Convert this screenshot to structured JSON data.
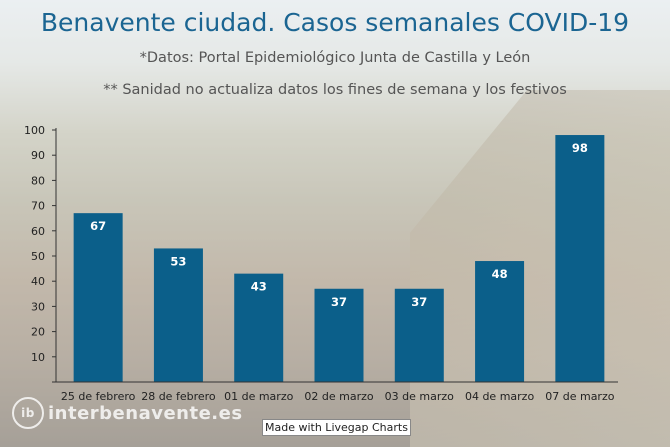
{
  "chart_data": {
    "type": "bar",
    "title": "Benavente ciudad. Casos semanales COVID-19",
    "subtitle": "*Datos: Portal Epidemiológico Junta de Castilla y León",
    "note": "** Sanidad no actualiza datos los fines de semana y los festivos",
    "categories": [
      "25 de febrero",
      "28 de febrero",
      "01 de marzo",
      "02 de marzo",
      "03 de marzo",
      "04 de marzo",
      "07 de marzo"
    ],
    "values": [
      67,
      53,
      43,
      37,
      37,
      48,
      98
    ],
    "ylim": [
      0,
      100
    ],
    "yticks": [
      10,
      20,
      30,
      40,
      50,
      60,
      70,
      80,
      90,
      100
    ],
    "xlabel": "",
    "ylabel": "",
    "bar_color": "#0b5f8a"
  },
  "footer": {
    "credit": "Made with Livegap Charts",
    "watermark_mark": "ib",
    "watermark_text": "interbenavente.es"
  }
}
